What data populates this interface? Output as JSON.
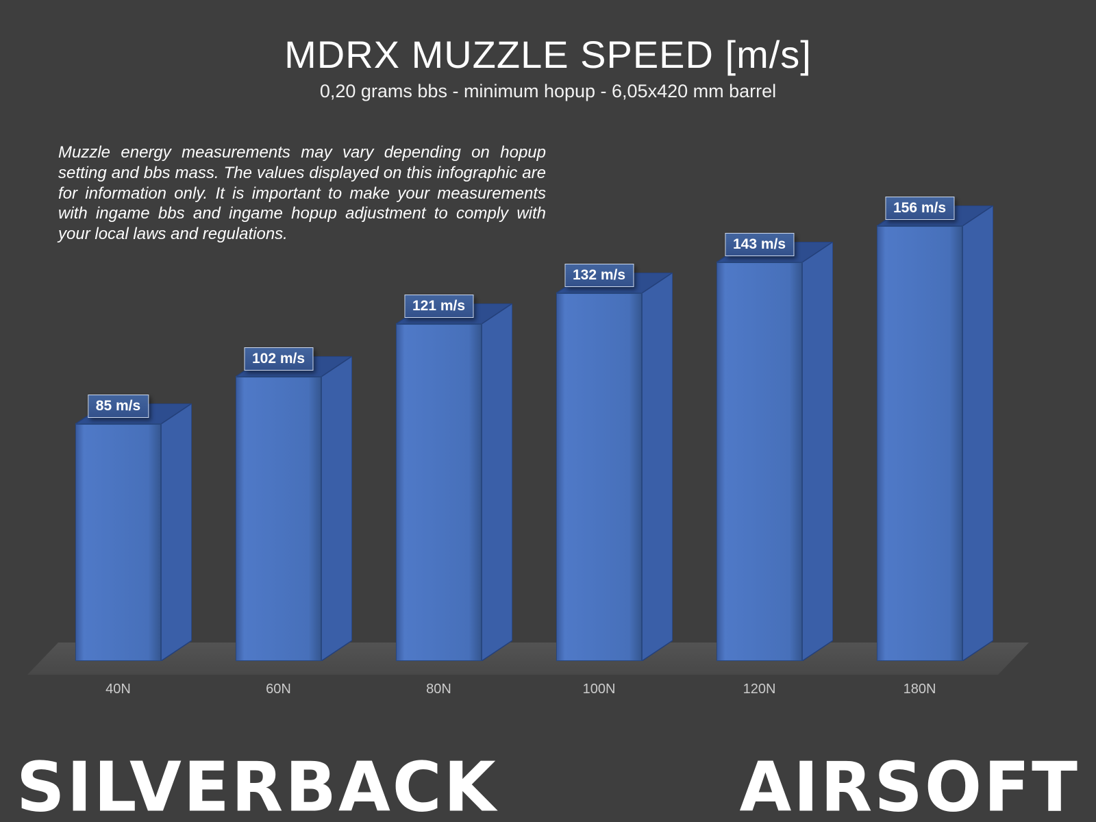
{
  "header": {
    "title": "MDRX MUZZLE SPEED [m/s]",
    "subtitle": "0,20 grams bbs - minimum hopup - 6,05x420 mm barrel"
  },
  "disclaimer": "Muzzle energy measurements may vary depending on hopup setting and bbs mass. The values displayed on this infographic are for information only. It is important to make your measurements with ingame bbs and ingame hopup adjustment to comply with your local laws and regulations.",
  "chart_data": {
    "type": "bar",
    "style": "3d-column",
    "title": "MDRX MUZZLE SPEED [m/s]",
    "subtitle": "0,20 grams bbs - minimum hopup - 6,05x420 mm barrel",
    "categories": [
      "40N",
      "60N",
      "80N",
      "100N",
      "120N",
      "180N"
    ],
    "values": [
      85,
      102,
      121,
      132,
      143,
      156
    ],
    "value_labels": [
      "85 m/s",
      "102 m/s",
      "121 m/s",
      "132 m/s",
      "143 m/s",
      "156 m/s"
    ],
    "unit": "m/s",
    "xlabel": "",
    "ylabel": "",
    "ylim": [
      0,
      160
    ],
    "grid": false,
    "legend": false,
    "bar_color": "#4472c4",
    "background_color": "#3e3e3e"
  },
  "footer": {
    "brand_left": "SILVERBACK",
    "brand_right": "AIRSOFT"
  },
  "colors": {
    "background": "#3e3e3e",
    "bar_front": "#4a72bd",
    "bar_top": "#2d4d8f",
    "bar_side": "#3a5fa8",
    "label_box": "#375894",
    "floor": "#4d4d4d",
    "text": "#ffffff"
  }
}
